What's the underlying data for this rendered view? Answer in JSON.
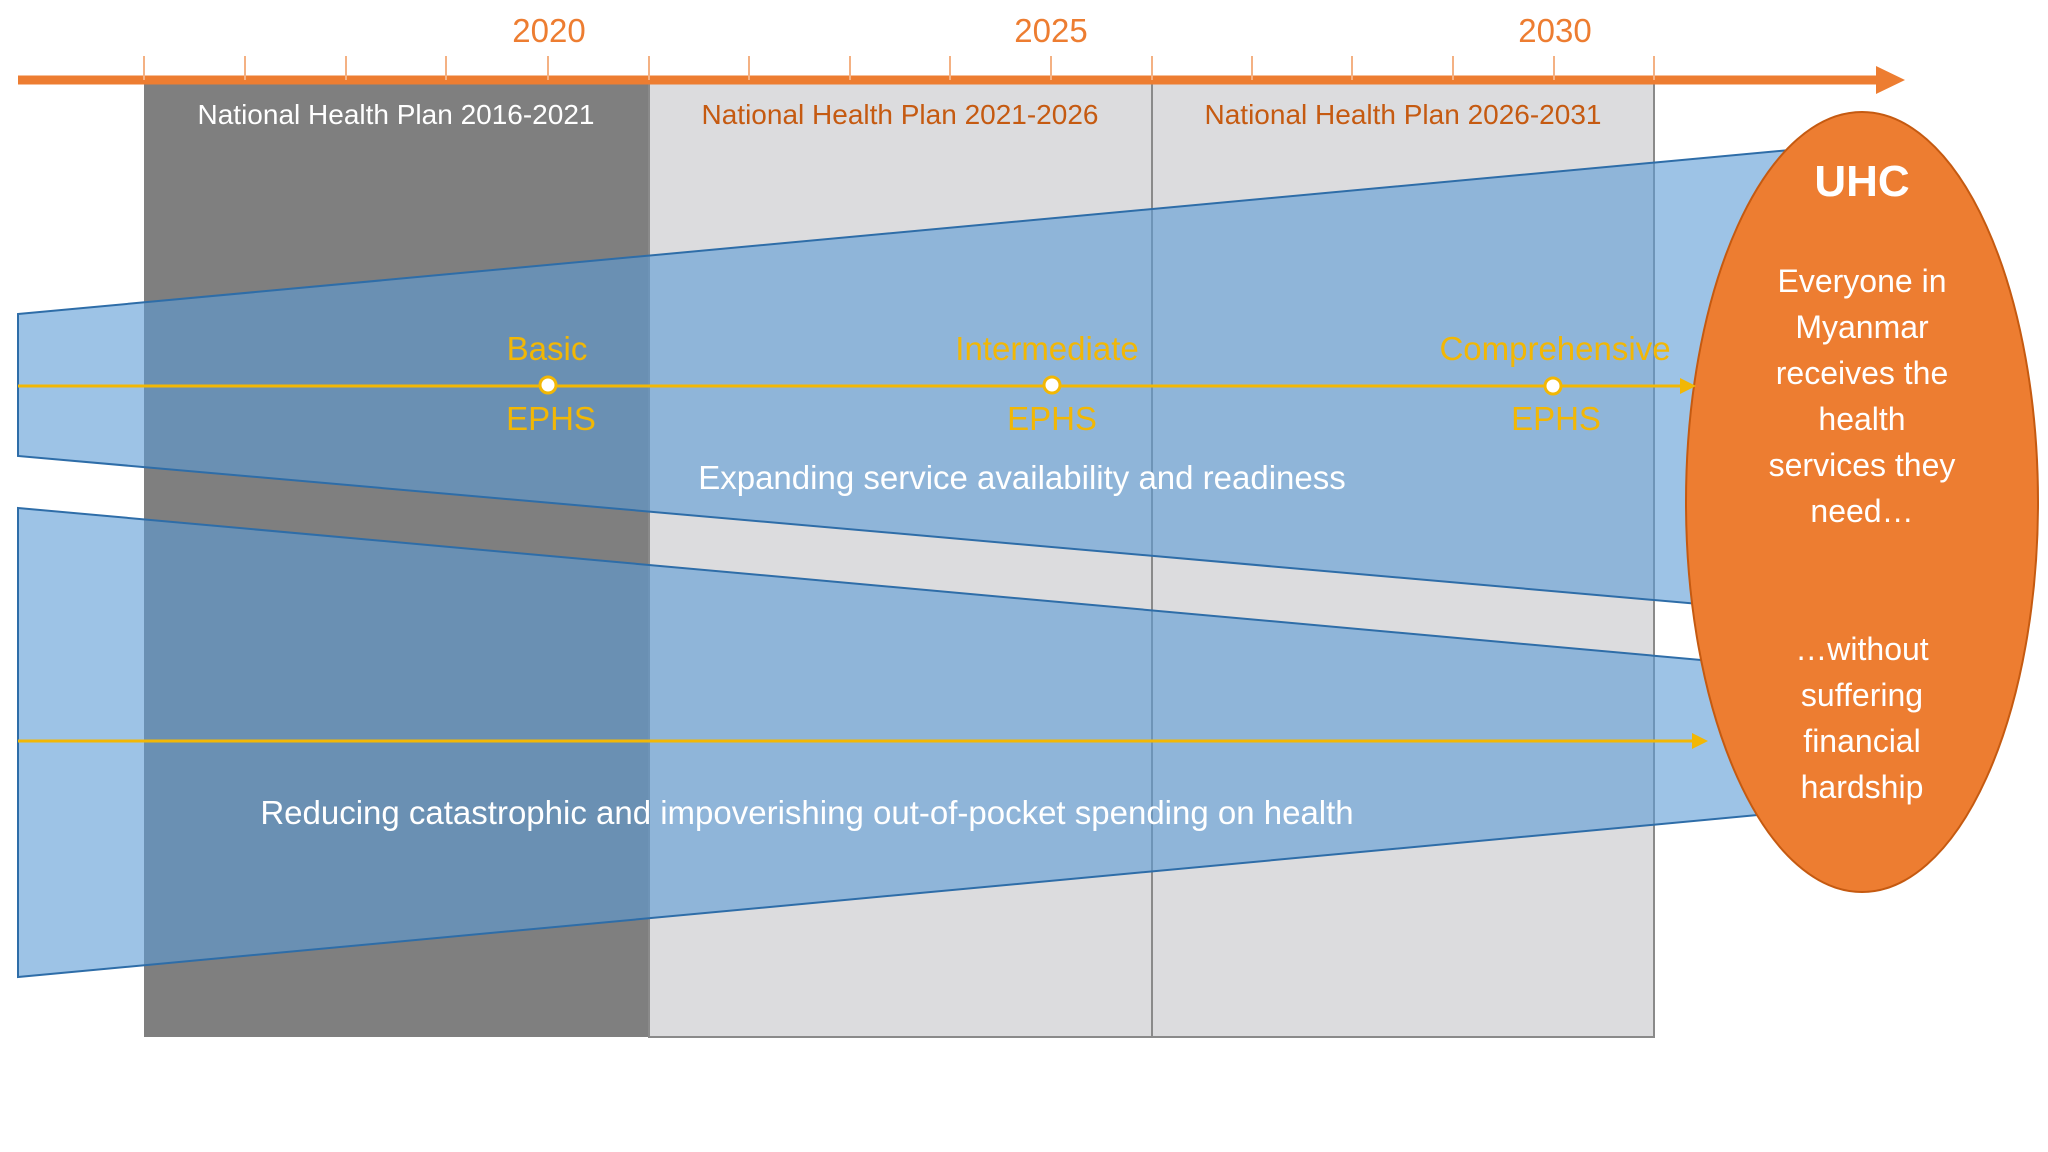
{
  "colors": {
    "timeline": "#ED7D31",
    "dark_plan": "#7F7F7F",
    "light_plan": "#DCDCDE",
    "band": "#5B9BD5",
    "band_edge": "#2E6DA8",
    "arrow_yellow": "#F2B705",
    "uhc_fill": "#ED7D31",
    "uhc_edge": "#C55A11",
    "white_text": "#FFFFFF",
    "plan_text_orange": "#C55A11"
  },
  "timeline": {
    "year_labels": [
      "2020",
      "2025",
      "2030"
    ]
  },
  "plans": [
    {
      "label": "National Health Plan 2016-2021"
    },
    {
      "label": "National Health Plan 2021-2026"
    },
    {
      "label": "National Health Plan 2026-2031"
    }
  ],
  "ephs": {
    "milestones": [
      {
        "level": "Basic",
        "name": "EPHS"
      },
      {
        "level": "Intermediate",
        "name": "EPHS"
      },
      {
        "level": "Comprehensive",
        "name": "EPHS"
      }
    ]
  },
  "bands": {
    "service_label": "Expanding service availability and readiness",
    "spending_label": "Reducing catastrophic and impoverishing out-of-pocket spending on health"
  },
  "uhc": {
    "title": "UHC",
    "lines_top": [
      "Everyone in",
      "Myanmar",
      "receives the",
      "health",
      "services they",
      "need…"
    ],
    "lines_bottom": [
      "…without",
      "suffering",
      "financial",
      "hardship"
    ]
  }
}
